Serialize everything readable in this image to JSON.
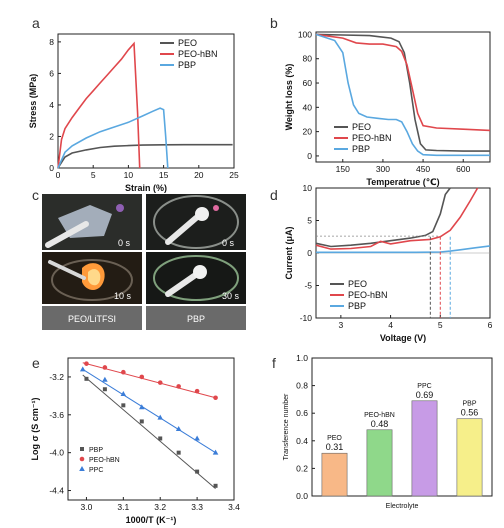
{
  "panel_letters": [
    "a",
    "b",
    "c",
    "d",
    "e",
    "f"
  ],
  "colors": {
    "PEO": "#555555",
    "PEO-hBN": "#e0474c",
    "PBP": "#5aa8e0",
    "e_PBP": "#555555",
    "e_PEO_hBN": "#e0474c",
    "e_PPC": "#3b7dd8",
    "f_bars": [
      "#f8b887",
      "#8fd88a",
      "#c79be6",
      "#f6ef8a"
    ]
  },
  "photos": {
    "labels_time": [
      "0 s",
      "0 s",
      "10 s",
      "30 s"
    ],
    "captions": [
      "PEO/LiTFSI",
      "PBP"
    ]
  },
  "chart_data": [
    {
      "panel": "a",
      "type": "line",
      "xlabel": "Strain (%)",
      "ylabel": "Stress (MPa)",
      "xlim": [
        0,
        25
      ],
      "ylim": [
        0,
        8.5
      ],
      "xticks": [
        0,
        5,
        10,
        15,
        20,
        25
      ],
      "yticks": [
        0,
        2,
        4,
        6,
        8
      ],
      "legend": [
        "PEO",
        "PEO-hBN",
        "PBP"
      ],
      "legend_position": "top-right",
      "series": [
        {
          "name": "PEO",
          "x": [
            0,
            1,
            2,
            4,
            6,
            8,
            10,
            12,
            15,
            18,
            21,
            24.8
          ],
          "y": [
            0,
            0.7,
            0.95,
            1.15,
            1.3,
            1.38,
            1.42,
            1.45,
            1.47,
            1.48,
            1.48,
            1.48
          ]
        },
        {
          "name": "PEO-hBN",
          "x": [
            0,
            0.5,
            1,
            2,
            3,
            4,
            5,
            6,
            7,
            8,
            9,
            10,
            10.8,
            11.3,
            11.6
          ],
          "y": [
            0,
            1.8,
            2.5,
            3.2,
            3.8,
            4.4,
            4.9,
            5.4,
            5.9,
            6.4,
            6.9,
            7.5,
            7.9,
            3.5,
            0
          ]
        },
        {
          "name": "PBP",
          "x": [
            0,
            1,
            2,
            4,
            6,
            8,
            10,
            12,
            13.5,
            14.5,
            15,
            15.3,
            15.6
          ],
          "y": [
            0,
            1.0,
            1.4,
            1.9,
            2.3,
            2.6,
            2.9,
            3.3,
            3.6,
            3.8,
            3.7,
            2.0,
            0
          ]
        }
      ]
    },
    {
      "panel": "b",
      "type": "line",
      "xlabel": "Temperatrue (℃)",
      "ylabel": "Weight loss (%)",
      "xlim": [
        50,
        700
      ],
      "ylim": [
        -5,
        102
      ],
      "xticks": [
        150,
        300,
        450,
        600
      ],
      "yticks": [
        0,
        20,
        40,
        60,
        80,
        100
      ],
      "legend": [
        "PEO",
        "PEO-hBN",
        "PBP"
      ],
      "legend_position": "bottom-left",
      "series": [
        {
          "name": "PEO",
          "x": [
            50,
            150,
            250,
            330,
            360,
            380,
            400,
            420,
            440,
            460,
            500,
            600,
            700
          ],
          "y": [
            100,
            99.5,
            99,
            97,
            94,
            85,
            60,
            30,
            10,
            5,
            4.5,
            4,
            4
          ]
        },
        {
          "name": "PEO-hBN",
          "x": [
            50,
            150,
            200,
            250,
            300,
            350,
            370,
            390,
            410,
            430,
            450,
            500,
            600,
            700
          ],
          "y": [
            100,
            97,
            93,
            92,
            92,
            90,
            86,
            75,
            55,
            35,
            25,
            23,
            22,
            21
          ]
        },
        {
          "name": "PBP",
          "x": [
            50,
            120,
            150,
            170,
            190,
            210,
            240,
            280,
            320,
            350,
            370,
            390,
            410,
            430,
            450,
            500,
            600,
            700
          ],
          "y": [
            100,
            95,
            85,
            60,
            42,
            35,
            32,
            31,
            30,
            30,
            28,
            20,
            10,
            4,
            1,
            0.5,
            0.5,
            0.5
          ]
        }
      ]
    },
    {
      "panel": "d",
      "type": "line",
      "xlabel": "Voltage (V)",
      "ylabel": "Current (μA)",
      "xlim": [
        2.5,
        6
      ],
      "ylim": [
        -10,
        10
      ],
      "xticks": [
        3,
        4,
        5,
        6
      ],
      "yticks": [
        -10,
        -5,
        0,
        5,
        10
      ],
      "legend": [
        "PEO",
        "PEO-hBN",
        "PBP"
      ],
      "legend_position": "bottom-left",
      "onset_voltages": [
        4.8,
        5.0,
        5.2
      ],
      "series": [
        {
          "name": "PEO",
          "x": [
            2.5,
            2.8,
            3.2,
            3.6,
            4.0,
            4.4,
            4.7,
            4.85,
            5.0,
            5.1,
            5.2
          ],
          "y": [
            1.5,
            1.0,
            1.2,
            1.5,
            1.9,
            2.3,
            2.7,
            3.3,
            6.0,
            9.0,
            10.0
          ]
        },
        {
          "name": "PEO-hBN",
          "x": [
            2.5,
            2.8,
            3.2,
            3.6,
            3.8,
            4.0,
            4.4,
            4.8,
            5.0,
            5.2,
            5.4,
            5.6,
            5.75
          ],
          "y": [
            1.2,
            0.6,
            0.7,
            1.0,
            1.8,
            1.4,
            1.9,
            2.1,
            2.5,
            3.5,
            5.5,
            8.0,
            10.0
          ]
        },
        {
          "name": "PBP",
          "x": [
            2.5,
            3.0,
            3.5,
            4.0,
            4.5,
            5.0,
            5.2,
            5.4,
            5.7,
            6.0
          ],
          "y": [
            0.1,
            0.1,
            0.1,
            0.1,
            0.1,
            0.15,
            0.3,
            0.5,
            0.8,
            1.1
          ]
        }
      ]
    },
    {
      "panel": "e",
      "type": "scatter",
      "xlabel": "1000/T (K⁻¹)",
      "ylabel": "Log σ (S cm⁻¹)",
      "xlim": [
        2.95,
        3.4
      ],
      "ylim": [
        -4.5,
        -3.0
      ],
      "xticks": [
        3.0,
        3.1,
        3.2,
        3.3,
        3.4
      ],
      "yticks": [
        -3.2,
        -3.6,
        -4.0,
        -4.4
      ],
      "legend": [
        "PBP",
        "PEO-hBN",
        "PPC"
      ],
      "legend_position": "bottom-left",
      "series": [
        {
          "name": "PBP",
          "marker": "square",
          "x": [
            3.0,
            3.05,
            3.1,
            3.15,
            3.2,
            3.25,
            3.3,
            3.35
          ],
          "y": [
            -3.22,
            -3.33,
            -3.5,
            -3.67,
            -3.85,
            -4.0,
            -4.2,
            -4.35
          ],
          "fit": [
            [
              2.99,
              -3.18
            ],
            [
              3.35,
              -4.38
            ]
          ]
        },
        {
          "name": "PEO-hBN",
          "marker": "circle",
          "x": [
            3.0,
            3.05,
            3.1,
            3.15,
            3.2,
            3.25,
            3.3,
            3.35
          ],
          "y": [
            -3.06,
            -3.1,
            -3.15,
            -3.2,
            -3.26,
            -3.3,
            -3.35,
            -3.42
          ],
          "fit": [
            [
              2.99,
              -3.05
            ],
            [
              3.35,
              -3.42
            ]
          ]
        },
        {
          "name": "PPC",
          "marker": "triangle",
          "x": [
            2.99,
            3.05,
            3.1,
            3.15,
            3.2,
            3.25,
            3.3,
            3.35
          ],
          "y": [
            -3.12,
            -3.23,
            -3.38,
            -3.52,
            -3.63,
            -3.75,
            -3.85,
            -4.0
          ],
          "fit": [
            [
              2.99,
              -3.12
            ],
            [
              3.35,
              -4.0
            ]
          ]
        }
      ]
    },
    {
      "panel": "f",
      "type": "bar",
      "xlabel": "Electrolyte",
      "ylabel": "Transference number",
      "ylim": [
        0,
        1.0
      ],
      "yticks": [
        0.0,
        0.2,
        0.4,
        0.6,
        0.8,
        1.0
      ],
      "categories": [
        "PEO",
        "PEO-hBN",
        "PPC",
        "PBP"
      ],
      "values": [
        0.31,
        0.48,
        0.69,
        0.56
      ],
      "value_labels": [
        "0.31",
        "0.48",
        "0.69",
        "0.56"
      ]
    }
  ]
}
